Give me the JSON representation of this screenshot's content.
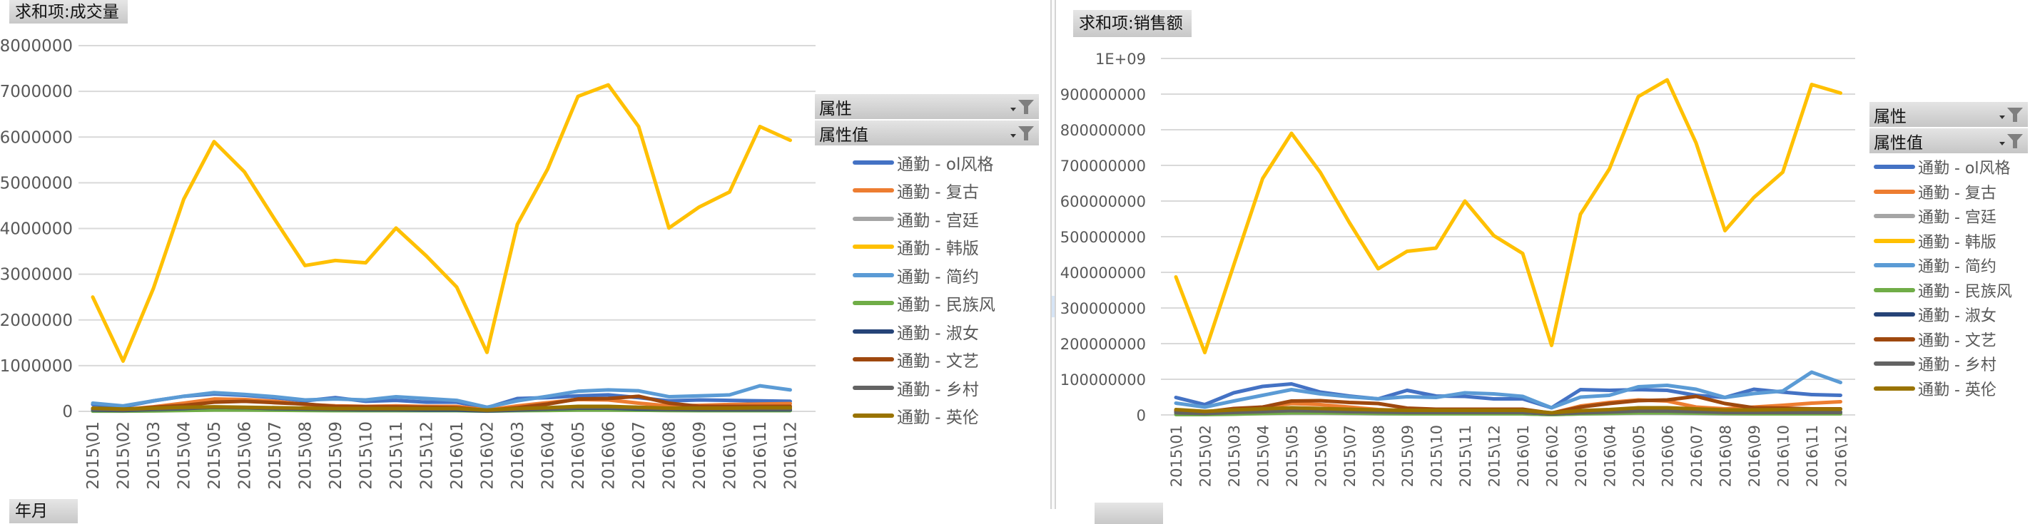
{
  "chart_data": [
    {
      "type": "line",
      "title": "求和项:成交量",
      "xlabel": "",
      "ylabel": "",
      "ylim": [
        0,
        8000000
      ],
      "yticks": [
        0,
        1000000,
        2000000,
        3000000,
        4000000,
        5000000,
        6000000,
        7000000,
        8000000
      ],
      "ytick_labels": [
        "0",
        "1000000",
        "2000000",
        "3000000",
        "4000000",
        "5000000",
        "6000000",
        "7000000",
        "8000000"
      ],
      "grid": true,
      "legend_position": "right",
      "categories": [
        "2015\\01",
        "2015\\02",
        "2015\\03",
        "2015\\04",
        "2015\\05",
        "2015\\06",
        "2015\\07",
        "2015\\08",
        "2015\\09",
        "2015\\10",
        "2015\\11",
        "2015\\12",
        "2016\\01",
        "2016\\02",
        "2016\\03",
        "2016\\04",
        "2016\\05",
        "2016\\06",
        "2016\\07",
        "2016\\08",
        "2016\\09",
        "2016\\10",
        "2016\\11",
        "2016\\12"
      ],
      "series": [
        {
          "name": "通勤 - ol风格",
          "color": "#4472c4",
          "values": [
            150000,
            100000,
            230000,
            330000,
            380000,
            350000,
            300000,
            230000,
            300000,
            220000,
            240000,
            200000,
            200000,
            80000,
            280000,
            300000,
            340000,
            360000,
            300000,
            230000,
            250000,
            240000,
            230000,
            220000
          ]
        },
        {
          "name": "通勤 - 复古",
          "color": "#ed7d31",
          "values": [
            60000,
            40000,
            100000,
            180000,
            270000,
            260000,
            220000,
            150000,
            120000,
            110000,
            120000,
            110000,
            110000,
            30000,
            120000,
            190000,
            260000,
            250000,
            180000,
            120000,
            130000,
            150000,
            160000,
            170000
          ]
        },
        {
          "name": "通勤 - 宫廷",
          "color": "#a5a5a5",
          "values": [
            20000,
            10000,
            20000,
            30000,
            40000,
            35000,
            30000,
            25000,
            20000,
            20000,
            20000,
            20000,
            20000,
            10000,
            20000,
            25000,
            30000,
            30000,
            25000,
            20000,
            20000,
            20000,
            20000,
            20000
          ]
        },
        {
          "name": "通勤 - 韩版",
          "color": "#ffc000",
          "values": [
            2500000,
            1100000,
            2690000,
            4640000,
            5900000,
            5240000,
            4200000,
            3190000,
            3300000,
            3250000,
            4010000,
            3400000,
            2720000,
            1290000,
            4090000,
            5300000,
            6890000,
            7140000,
            6230000,
            4010000,
            4470000,
            4800000,
            6230000,
            5930000
          ]
        },
        {
          "name": "通勤 - 简约",
          "color": "#5b9bd5",
          "values": [
            180000,
            120000,
            230000,
            330000,
            410000,
            370000,
            320000,
            250000,
            270000,
            250000,
            320000,
            280000,
            240000,
            90000,
            230000,
            330000,
            440000,
            470000,
            450000,
            320000,
            340000,
            360000,
            560000,
            470000
          ]
        },
        {
          "name": "通勤 - 民族风",
          "color": "#70ad47",
          "values": [
            5000,
            5000,
            10000,
            20000,
            30000,
            30000,
            25000,
            20000,
            15000,
            15000,
            15000,
            15000,
            15000,
            5000,
            15000,
            20000,
            30000,
            30000,
            25000,
            20000,
            15000,
            15000,
            15000,
            15000
          ]
        },
        {
          "name": "通勤 - 淑女",
          "color": "#264478",
          "values": [
            30000,
            20000,
            40000,
            60000,
            90000,
            80000,
            60000,
            50000,
            40000,
            35000,
            35000,
            30000,
            30000,
            10000,
            30000,
            50000,
            70000,
            70000,
            50000,
            40000,
            35000,
            35000,
            35000,
            35000
          ]
        },
        {
          "name": "通勤 - 文艺",
          "color": "#9e480e",
          "values": [
            60000,
            40000,
            90000,
            130000,
            200000,
            220000,
            190000,
            160000,
            110000,
            100000,
            100000,
            90000,
            80000,
            20000,
            80000,
            160000,
            270000,
            280000,
            330000,
            180000,
            110000,
            110000,
            110000,
            110000
          ]
        },
        {
          "name": "通勤 - 乡村",
          "color": "#636363",
          "values": [
            40000,
            30000,
            50000,
            70000,
            90000,
            80000,
            70000,
            60000,
            50000,
            50000,
            50000,
            50000,
            50000,
            20000,
            40000,
            60000,
            80000,
            80000,
            70000,
            50000,
            50000,
            50000,
            50000,
            50000
          ]
        },
        {
          "name": "通勤 - 英伦",
          "color": "#997300",
          "values": [
            70000,
            50000,
            70000,
            90000,
            100000,
            90000,
            80000,
            70000,
            60000,
            60000,
            60000,
            60000,
            60000,
            30000,
            60000,
            80000,
            110000,
            110000,
            90000,
            70000,
            70000,
            70000,
            80000,
            80000
          ]
        }
      ]
    },
    {
      "type": "line",
      "title": "求和项:销售额",
      "xlabel": "",
      "ylabel": "",
      "ylim": [
        0,
        1000000000
      ],
      "yticks": [
        0,
        100000000,
        200000000,
        300000000,
        400000000,
        500000000,
        600000000,
        700000000,
        800000000,
        900000000,
        1000000000
      ],
      "ytick_labels": [
        "0",
        "100000000",
        "200000000",
        "300000000",
        "400000000",
        "500000000",
        "600000000",
        "700000000",
        "800000000",
        "900000000",
        "1E+09"
      ],
      "grid": true,
      "legend_position": "right",
      "categories": [
        "2015\\01",
        "2015\\02",
        "2015\\03",
        "2015\\04",
        "2015\\05",
        "2015\\06",
        "2015\\07",
        "2015\\08",
        "2015\\09",
        "2015\\10",
        "2015\\11",
        "2015\\12",
        "2016\\01",
        "2016\\02",
        "2016\\03",
        "2016\\04",
        "2016\\05",
        "2016\\06",
        "2016\\07",
        "2016\\08",
        "2016\\09",
        "2016\\10",
        "2016\\11",
        "2016\\12"
      ],
      "series": [
        {
          "name": "通勤 - ol风格",
          "color": "#4472c4",
          "values": [
            49000000,
            29000000,
            62000000,
            80000000,
            87000000,
            64000000,
            53000000,
            45000000,
            69000000,
            53000000,
            52000000,
            45000000,
            45000000,
            20000000,
            71000000,
            69000000,
            71000000,
            69000000,
            55000000,
            49000000,
            72000000,
            64000000,
            57000000,
            55000000
          ]
        },
        {
          "name": "通勤 - 复古",
          "color": "#ed7d31",
          "values": [
            12000000,
            8000000,
            16000000,
            22000000,
            32000000,
            29000000,
            22000000,
            15000000,
            12000000,
            12000000,
            13000000,
            13000000,
            13000000,
            5000000,
            25000000,
            35000000,
            42000000,
            39000000,
            22000000,
            17000000,
            22000000,
            27000000,
            33000000,
            37000000
          ]
        },
        {
          "name": "通勤 - 宫廷",
          "color": "#a5a5a5",
          "values": [
            3000000,
            2000000,
            3000000,
            4000000,
            5000000,
            5000000,
            4000000,
            3000000,
            3000000,
            3000000,
            3000000,
            3000000,
            3000000,
            1000000,
            3000000,
            4000000,
            5000000,
            5000000,
            4000000,
            3000000,
            3000000,
            3000000,
            3000000,
            3000000
          ]
        },
        {
          "name": "通勤 - 韩版",
          "color": "#ffc000",
          "values": [
            387000000,
            175000000,
            420000000,
            663000000,
            790000000,
            680000000,
            540000000,
            410000000,
            459000000,
            468000000,
            600000000,
            503000000,
            453000000,
            195000000,
            563000000,
            690000000,
            893000000,
            940000000,
            763000000,
            517000000,
            610000000,
            681000000,
            927000000,
            903000000
          ]
        },
        {
          "name": "通勤 - 简约",
          "color": "#5b9bd5",
          "values": [
            33000000,
            22000000,
            39000000,
            55000000,
            71000000,
            59000000,
            51000000,
            45000000,
            51000000,
            49000000,
            62000000,
            59000000,
            52000000,
            20000000,
            50000000,
            55000000,
            79000000,
            83000000,
            72000000,
            49000000,
            60000000,
            67000000,
            120000000,
            91000000
          ]
        },
        {
          "name": "通勤 - 民族风",
          "color": "#70ad47",
          "values": [
            1000000,
            1000000,
            2000000,
            4000000,
            6000000,
            6000000,
            5000000,
            4000000,
            3000000,
            3000000,
            3000000,
            3000000,
            3000000,
            1000000,
            3000000,
            4000000,
            6000000,
            6000000,
            5000000,
            4000000,
            3000000,
            3000000,
            3000000,
            3000000
          ]
        },
        {
          "name": "通勤 - 淑女",
          "color": "#264478",
          "values": [
            8000000,
            5000000,
            9000000,
            12000000,
            18000000,
            15000000,
            12000000,
            10000000,
            8000000,
            7000000,
            7000000,
            7000000,
            7000000,
            3000000,
            7000000,
            10000000,
            14000000,
            14000000,
            10000000,
            8000000,
            7000000,
            7000000,
            8000000,
            8000000
          ]
        },
        {
          "name": "通勤 - 文艺",
          "color": "#9e480e",
          "values": [
            12000000,
            8000000,
            18000000,
            22000000,
            39000000,
            40000000,
            35000000,
            32000000,
            19000000,
            16000000,
            16000000,
            16000000,
            16000000,
            5000000,
            22000000,
            32000000,
            40000000,
            42000000,
            52000000,
            32000000,
            20000000,
            19000000,
            17000000,
            17000000
          ]
        },
        {
          "name": "通勤 - 乡村",
          "color": "#636363",
          "values": [
            6000000,
            4000000,
            7000000,
            9000000,
            12000000,
            11000000,
            9000000,
            8000000,
            7000000,
            7000000,
            7000000,
            7000000,
            7000000,
            3000000,
            6000000,
            8000000,
            11000000,
            11000000,
            9000000,
            7000000,
            7000000,
            7000000,
            7000000,
            7000000
          ]
        },
        {
          "name": "通勤 - 英伦",
          "color": "#997300",
          "values": [
            15000000,
            10000000,
            14000000,
            17000000,
            20000000,
            18000000,
            16000000,
            14000000,
            13000000,
            13000000,
            13000000,
            13000000,
            13000000,
            6000000,
            12000000,
            15000000,
            20000000,
            20000000,
            17000000,
            14000000,
            14000000,
            15000000,
            16000000,
            16000000
          ]
        }
      ]
    }
  ],
  "left_panel": {
    "value_field_button": "求和项:成交量",
    "legend_filters": [
      {
        "label": "属性"
      },
      {
        "label": "属性值"
      }
    ],
    "axis_field_button": "年月"
  },
  "right_panel": {
    "value_field_button": "求和项:销售额",
    "legend_filters": [
      {
        "label": "属性"
      },
      {
        "label": "属性值"
      }
    ],
    "axis_field_button": ""
  }
}
